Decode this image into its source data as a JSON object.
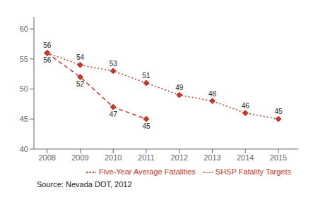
{
  "chart_data": {
    "type": "line",
    "x": [
      2008,
      2009,
      2010,
      2011,
      2012,
      2013,
      2014,
      2015
    ],
    "xlim": [
      2007.6,
      2015.6
    ],
    "xticks": [
      2008,
      2009,
      2010,
      2011,
      2012,
      2013,
      2014,
      2015
    ],
    "ylim": [
      40,
      62
    ],
    "yticks": [
      40,
      45,
      50,
      55,
      60
    ],
    "series": [
      {
        "name": "SHSP Fatality Targets",
        "color": "#c0392b",
        "line_style": "dotted",
        "marker": "diamond",
        "values": [
          56,
          54,
          53,
          51,
          49,
          48,
          46,
          45
        ]
      },
      {
        "name": "Five-Year Average Fatalities",
        "color": "#c0392b",
        "line_style": "dashed",
        "marker": "diamond",
        "values": [
          56,
          52,
          47,
          45,
          null,
          null,
          null,
          null
        ]
      }
    ],
    "data_labels": true,
    "legend": "lower right",
    "grid": false,
    "annotations": [
      "Source: Nevada DOT, 2012"
    ]
  }
}
